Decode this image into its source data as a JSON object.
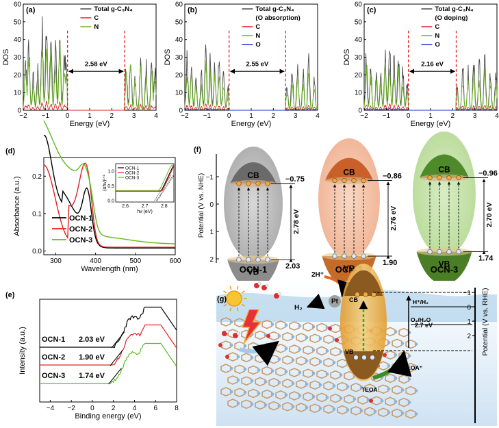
{
  "colors": {
    "total": "#4a4a4a",
    "C": "#e02020",
    "N": "#6ab520",
    "O": "#1a30d0",
    "gap": "#e02020",
    "ocn1": "#000000",
    "ocn2": "#e02020",
    "ocn3": "#5cbb1c"
  },
  "panel_a": {
    "label": "(a)",
    "legend": [
      "Total g-C₃N₄",
      "C",
      "N"
    ],
    "gap_label": "2.58 eV",
    "xlabel": "Energy (eV)",
    "ylabel": "DOS"
  },
  "panel_b": {
    "label": "(b)",
    "legend": [
      "Total g-C₃N₄",
      "(O absorption)",
      "C",
      "N",
      "O"
    ],
    "gap_label": "2.55 eV",
    "xlabel": "Energy (eV)",
    "ylabel": "DOS"
  },
  "panel_c": {
    "label": "(c)",
    "legend": [
      "Total g-C₃N₄",
      "(O doping)",
      "C",
      "N",
      "O"
    ],
    "gap_label": "2.16 eV",
    "xlabel": "Energy (eV)",
    "ylabel": "DOS"
  },
  "panel_d": {
    "label": "(d)",
    "legend": [
      "OCN-1",
      "OCN-2",
      "OCN-3"
    ],
    "inset_legend": [
      "OCN-1",
      "OCN-2",
      "OCN-3"
    ],
    "inset_ylabel": "(αhv)¹ᐟ²",
    "inset_xlabel": "hv (eV)",
    "xlabel": "Wavelength (nm)",
    "ylabel": "Absorbance (a.u.)"
  },
  "panel_e": {
    "label": "(e)",
    "rows": [
      {
        "name": "OCN-1",
        "value": "2.03 eV"
      },
      {
        "name": "OCN-2",
        "value": "1.90 eV"
      },
      {
        "name": "OCN-3",
        "value": "1.74 eV"
      }
    ],
    "xlabel": "Binding energy (eV)",
    "ylabel": "Intensity (a.u.)"
  },
  "panel_f": {
    "label": "(f)",
    "ylabel": "Potential (V vs. NHE)",
    "cb": "CB",
    "vb": "VB",
    "samples": [
      {
        "name": "OCN-1",
        "cb_value": "−0.75",
        "vb_value": "2.03",
        "gap": "2.78 eV"
      },
      {
        "name": "OCN-2",
        "cb_value": "−0.86",
        "vb_value": "1.90",
        "gap": "2.76 eV"
      },
      {
        "name": "OCN-3",
        "cb_value": "−0.96",
        "vb_value": "1.74",
        "gap": "2.70 eV"
      }
    ]
  },
  "panel_g": {
    "label": "(g)",
    "h2_label": "2H⁺",
    "h2": "H₂",
    "pt": "Pt",
    "cb": "CB",
    "vb": "VB",
    "hh2": "H⁺/H₂",
    "gap": "2.7 eV",
    "o2": "O₂/H₂O",
    "teoa": "TEOA",
    "teoa_plus": "TEOA⁺",
    "ylabel": "Potential (V vs. RHE)"
  },
  "chart_data": [
    {
      "type": "line",
      "title": "(a)",
      "xlabel": "Energy (eV)",
      "ylabel": "DOS",
      "xlim": [
        -2,
        4
      ],
      "ylim": [
        0,
        60
      ],
      "xticks": [
        -2,
        -1,
        0,
        1,
        2,
        3,
        4
      ],
      "yticks": [
        0,
        10,
        20,
        30,
        40,
        50,
        60
      ],
      "gap": [
        0,
        2.58
      ],
      "series": [
        "Total g-C3N4",
        "C",
        "N"
      ]
    },
    {
      "type": "line",
      "title": "(b)",
      "xlabel": "Energy (eV)",
      "ylabel": "DOS",
      "xlim": [
        -2,
        4
      ],
      "ylim": [
        0,
        60
      ],
      "xticks": [
        -2,
        -1,
        0,
        1,
        2,
        3,
        4
      ],
      "yticks": [
        0,
        10,
        20,
        30,
        40,
        50,
        60
      ],
      "gap": [
        0,
        2.55
      ],
      "series": [
        "Total g-C3N4 (O absorption)",
        "C",
        "N",
        "O"
      ]
    },
    {
      "type": "line",
      "title": "(c)",
      "xlabel": "Energy (eV)",
      "ylabel": "DOS",
      "xlim": [
        -2,
        4
      ],
      "ylim": [
        0,
        60
      ],
      "xticks": [
        -2,
        -1,
        0,
        1,
        2,
        3,
        4
      ],
      "yticks": [
        0,
        10,
        20,
        30,
        40,
        50,
        60
      ],
      "gap": [
        0,
        2.16
      ],
      "series": [
        "Total g-C3N4 (O doping)",
        "C",
        "N",
        "O"
      ]
    },
    {
      "type": "line",
      "title": "(d)",
      "xlabel": "Wavelength (nm)",
      "ylabel": "Absorbance (a.u.)",
      "xlim": [
        270,
        600
      ],
      "ylim": [
        0,
        0.25
      ],
      "xticks": [
        300,
        400,
        500,
        600
      ],
      "yticks": [
        0.0,
        0.1,
        0.2
      ],
      "series": [
        "OCN-1",
        "OCN-2",
        "OCN-3"
      ]
    },
    {
      "type": "line",
      "title": "(d) inset",
      "xlabel": "hv (eV)",
      "xlim": [
        2.55,
        2.85
      ],
      "xticks": [
        2.6,
        2.7,
        2.8
      ],
      "yticks": [
        0.0,
        0.5,
        1.0
      ],
      "series": [
        "OCN-1",
        "OCN-2",
        "OCN-3"
      ]
    },
    {
      "type": "line",
      "title": "(e)",
      "xlabel": "Binding energy (eV)",
      "ylabel": "Intensity (a.u.)",
      "xlim": [
        -5,
        8
      ],
      "xticks": [
        -4,
        -2,
        0,
        2,
        4,
        6,
        8
      ],
      "series": [
        {
          "name": "OCN-1",
          "edge": 2.03
        },
        {
          "name": "OCN-2",
          "edge": 1.9
        },
        {
          "name": "OCN-3",
          "edge": 1.74
        }
      ]
    },
    {
      "type": "diagram",
      "title": "(f)",
      "ylabel": "Potential (V vs. NHE)",
      "yticks": [
        -1,
        0,
        1,
        2
      ],
      "series": [
        {
          "name": "OCN-1",
          "cb": -0.75,
          "vb": 2.03,
          "gap": 2.78
        },
        {
          "name": "OCN-2",
          "cb": -0.86,
          "vb": 1.9,
          "gap": 2.76
        },
        {
          "name": "OCN-3",
          "cb": -0.96,
          "vb": 1.74,
          "gap": 2.7
        }
      ]
    }
  ]
}
